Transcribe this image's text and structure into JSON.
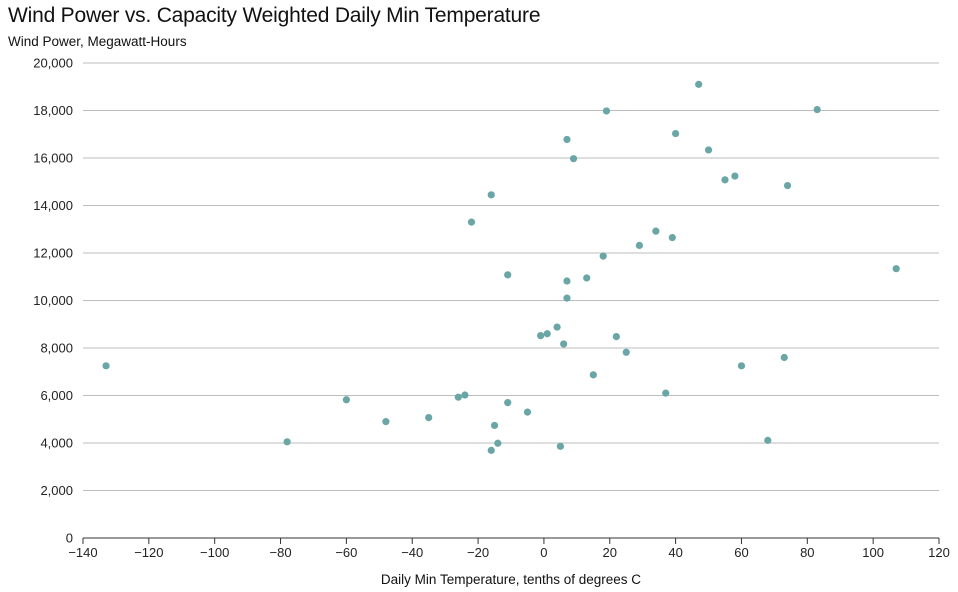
{
  "chart_data": {
    "type": "scatter",
    "title": "Wind Power vs. Capacity Weighted Daily Min Temperature",
    "ylabel": "Wind Power, Megawatt-Hours",
    "xlabel": "Daily Min Temperature, tenths of degrees C",
    "xlim": [
      -140,
      120
    ],
    "ylim": [
      0,
      20000
    ],
    "x_ticks": [
      -140,
      -120,
      -100,
      -80,
      -60,
      -40,
      -20,
      0,
      20,
      40,
      60,
      80,
      100,
      120
    ],
    "x_tick_labels": [
      "−140",
      "−120",
      "−100",
      "−80",
      "−60",
      "−40",
      "−20",
      "0",
      "20",
      "40",
      "60",
      "80",
      "100",
      "120"
    ],
    "y_ticks": [
      0,
      2000,
      4000,
      6000,
      8000,
      10000,
      12000,
      14000,
      16000,
      18000,
      20000
    ],
    "y_tick_labels": [
      "0",
      "2,000",
      "4,000",
      "6,000",
      "8,000",
      "10,000",
      "12,000",
      "14,000",
      "16,000",
      "18,000",
      "20,000"
    ],
    "grid": "horizontal",
    "color": "#6aa6a6",
    "points": [
      {
        "x": -133,
        "y": 7250
      },
      {
        "x": -78,
        "y": 4050
      },
      {
        "x": -60,
        "y": 5820
      },
      {
        "x": -48,
        "y": 4900
      },
      {
        "x": -35,
        "y": 5070
      },
      {
        "x": -26,
        "y": 5930
      },
      {
        "x": -24,
        "y": 6020
      },
      {
        "x": -22,
        "y": 13300
      },
      {
        "x": -16,
        "y": 14450
      },
      {
        "x": -16,
        "y": 3690
      },
      {
        "x": -15,
        "y": 4740
      },
      {
        "x": -14,
        "y": 3990
      },
      {
        "x": -11,
        "y": 5700
      },
      {
        "x": -11,
        "y": 11080
      },
      {
        "x": -5,
        "y": 5300
      },
      {
        "x": -1,
        "y": 8520
      },
      {
        "x": 1,
        "y": 8600
      },
      {
        "x": 4,
        "y": 8880
      },
      {
        "x": 5,
        "y": 3860
      },
      {
        "x": 6,
        "y": 8170
      },
      {
        "x": 7,
        "y": 16780
      },
      {
        "x": 7,
        "y": 10820
      },
      {
        "x": 7,
        "y": 10100
      },
      {
        "x": 9,
        "y": 15970
      },
      {
        "x": 13,
        "y": 10950
      },
      {
        "x": 15,
        "y": 6870
      },
      {
        "x": 18,
        "y": 11870
      },
      {
        "x": 19,
        "y": 17980
      },
      {
        "x": 22,
        "y": 8480
      },
      {
        "x": 25,
        "y": 7820
      },
      {
        "x": 29,
        "y": 12320
      },
      {
        "x": 34,
        "y": 12920
      },
      {
        "x": 37,
        "y": 6100
      },
      {
        "x": 39,
        "y": 12650
      },
      {
        "x": 40,
        "y": 17030
      },
      {
        "x": 47,
        "y": 19100
      },
      {
        "x": 50,
        "y": 16340
      },
      {
        "x": 55,
        "y": 15080
      },
      {
        "x": 58,
        "y": 15240
      },
      {
        "x": 60,
        "y": 7250
      },
      {
        "x": 68,
        "y": 4110
      },
      {
        "x": 73,
        "y": 7600
      },
      {
        "x": 74,
        "y": 14840
      },
      {
        "x": 83,
        "y": 18040
      },
      {
        "x": 107,
        "y": 11340
      }
    ]
  }
}
